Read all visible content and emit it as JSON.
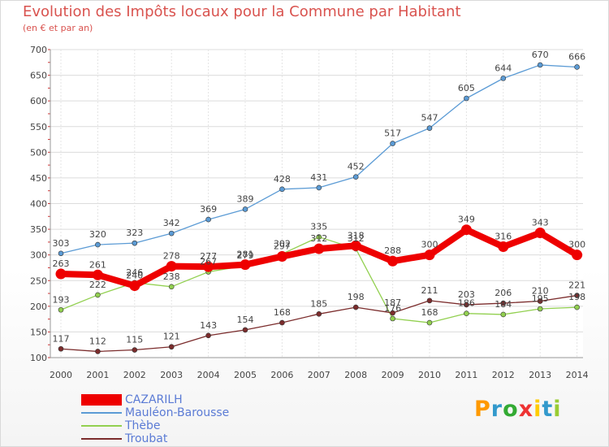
{
  "chart_data": {
    "type": "line",
    "title": "Evolution des Impôts locaux pour la Commune par Habitant",
    "subtitle": "(en € et par an)",
    "x": [
      "2000",
      "2001",
      "2002",
      "2003",
      "2004",
      "2005",
      "2006",
      "2007",
      "2008",
      "2009",
      "2010",
      "2011",
      "2012",
      "2013",
      "2014"
    ],
    "ylim": [
      100,
      700
    ],
    "yticks": [
      100,
      150,
      200,
      250,
      300,
      350,
      400,
      450,
      500,
      550,
      600,
      650,
      700
    ],
    "grid": true,
    "legend_position": "bottom-left",
    "series": [
      {
        "name": "CAZARILH",
        "color": "#ee0000",
        "values": [
          263,
          261,
          240,
          278,
          277,
          281,
          297,
          312,
          318,
          288,
          300,
          349,
          316,
          343,
          300
        ]
      },
      {
        "name": "Mauléon-Barousse",
        "color": "#5b9bd5",
        "values": [
          303,
          320,
          323,
          342,
          369,
          389,
          428,
          431,
          452,
          517,
          547,
          605,
          644,
          670,
          666
        ]
      },
      {
        "name": "Thèbe",
        "color": "#92d050",
        "values": [
          193,
          222,
          246,
          238,
          267,
          279,
          302,
          335,
          312,
          176,
          168,
          186,
          184,
          195,
          198
        ]
      },
      {
        "name": "Troubat",
        "color": "#7b2c2c",
        "values": [
          117,
          112,
          115,
          121,
          143,
          154,
          168,
          185,
          198,
          187,
          211,
          203,
          206,
          210,
          221
        ]
      }
    ]
  },
  "logo": {
    "letters": [
      "P",
      "r",
      "o",
      "x",
      "i",
      "t",
      "i"
    ],
    "colors": [
      "#ff9900",
      "#3399cc",
      "#33aa33",
      "#ee3333",
      "#ffcc00",
      "#3399cc",
      "#99cc33"
    ]
  }
}
